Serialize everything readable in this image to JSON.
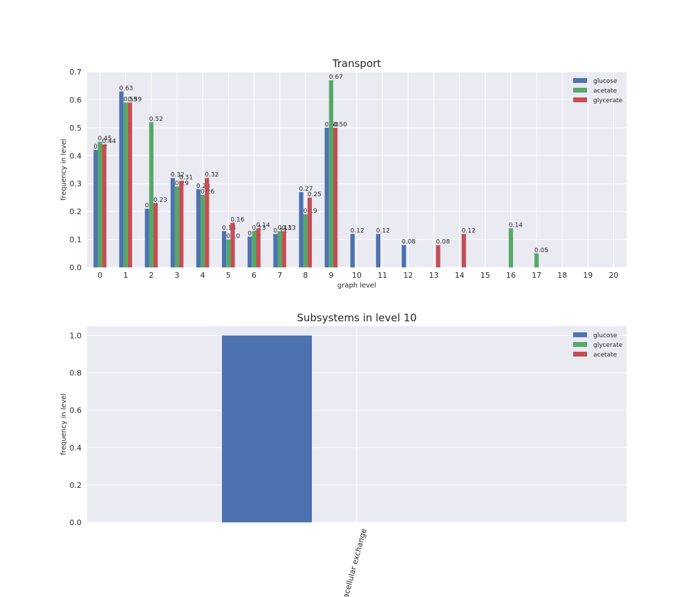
{
  "chart_data": [
    {
      "type": "bar",
      "title": "Transport",
      "x_label": "graph level",
      "y_label": "frequency in level",
      "categories": [
        "0",
        "1",
        "2",
        "3",
        "4",
        "5",
        "6",
        "7",
        "8",
        "9",
        "10",
        "11",
        "12",
        "13",
        "14",
        "15",
        "16",
        "17",
        "18",
        "19",
        "20"
      ],
      "series": [
        {
          "name": "glucose",
          "color": "#4c72b0",
          "values": [
            0.42,
            0.63,
            0.21,
            0.32,
            0.28,
            0.13,
            0.11,
            0.12,
            0.27,
            0.5,
            0.12,
            0.12,
            0.08,
            null,
            null,
            null,
            null,
            null,
            null,
            null,
            null
          ],
          "value_labels": [
            "0.42",
            "0.63",
            "0.21",
            "0.32",
            "0.28",
            "0.13",
            "0.11",
            "0.12",
            "0.27",
            "0.50",
            "0.12",
            "0.12",
            "0.08",
            null,
            null,
            null,
            null,
            null,
            null,
            null,
            null
          ]
        },
        {
          "name": "acetate",
          "color": "#55a868",
          "values": [
            0.45,
            0.59,
            0.52,
            0.29,
            0.26,
            0.1,
            0.13,
            0.13,
            0.19,
            0.67,
            null,
            null,
            null,
            null,
            null,
            null,
            0.14,
            0.05,
            null,
            null,
            null
          ],
          "value_labels": [
            "0.45",
            "0.59",
            "0.52",
            "0.29",
            "0.26",
            "0.10",
            "0.13",
            "0.13",
            "0.19",
            "0.67",
            null,
            null,
            null,
            null,
            null,
            null,
            "0.14",
            "0.05",
            null,
            null,
            null
          ]
        },
        {
          "name": "glycerate",
          "color": "#c44e52",
          "values": [
            0.44,
            0.59,
            0.23,
            0.31,
            0.32,
            0.16,
            0.14,
            0.13,
            0.25,
            0.5,
            null,
            null,
            null,
            0.08,
            0.12,
            null,
            null,
            null,
            null,
            null,
            null
          ],
          "value_labels": [
            "0.44",
            "0.59",
            "0.23",
            "0.31",
            "0.32",
            "0.16",
            "0.14",
            "0.13",
            "0.25",
            "0.50",
            null,
            null,
            null,
            "0.08",
            "0.12",
            null,
            null,
            null,
            null,
            null,
            null
          ]
        }
      ],
      "ylim": [
        0,
        0.7
      ],
      "yticks": [
        {
          "value": 0,
          "label": "0.0"
        },
        0.1,
        0.2,
        0.3,
        0.4,
        0.5,
        0.6,
        0.7
      ],
      "grid": true,
      "legend": "upper right"
    },
    {
      "type": "bar",
      "title": "Subsystems in level 10",
      "y_label": "frequency in level",
      "categories": [
        "Extracellular exchange"
      ],
      "series": [
        {
          "name": "glucose",
          "color": "#4c72b0",
          "values": [
            1
          ]
        },
        {
          "name": "glycerate",
          "color": "#55a868",
          "values": [
            null
          ]
        },
        {
          "name": "acetate",
          "color": "#c44e52",
          "values": [
            null
          ]
        }
      ],
      "ylim": [
        0,
        1.05
      ],
      "yticks": [
        {
          "value": 0,
          "label": "0.0"
        },
        0.2,
        0.4,
        0.6,
        0.8,
        {
          "value": 1,
          "label": "1.0"
        }
      ],
      "grid": true,
      "legend": "upper right",
      "x_label_rotation": 75
    }
  ]
}
